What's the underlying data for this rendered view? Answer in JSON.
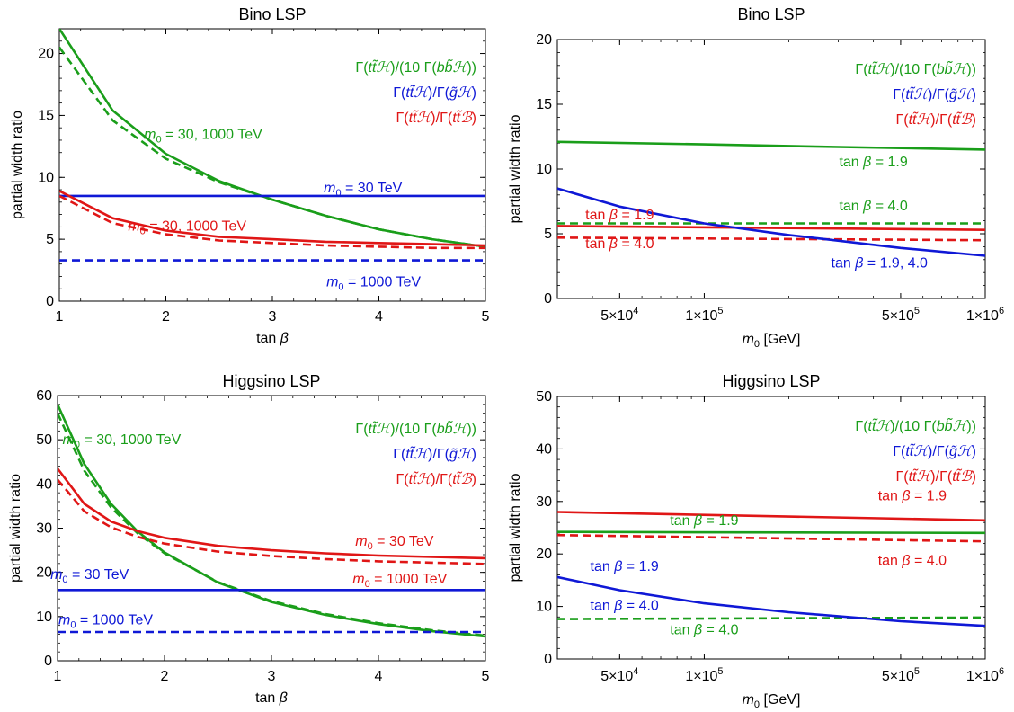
{
  "figure": {
    "colors": {
      "green": "#1a9e1a",
      "blue": "#0f18d6",
      "red": "#e01616",
      "axis": "#000000"
    }
  },
  "chart_data": [
    {
      "id": "bino_tanb",
      "type": "line",
      "title": "Bino LSP",
      "xlabel": "tan β",
      "ylabel": "partial width ratio",
      "xscale": "linear",
      "xlim": [
        1,
        5
      ],
      "ylim": [
        0,
        22
      ],
      "xticks": [
        1,
        2,
        3,
        4,
        5
      ],
      "yticks": [
        0,
        5,
        10,
        15,
        20
      ],
      "legend": {
        "placement": "top-right",
        "entries": [
          {
            "label": "Γ(tt̃ℋ)/(10 Γ(bb̃ℋ))",
            "color": "green"
          },
          {
            "label": "Γ(tt̃ℋ)/Γ(g̃ℋ)",
            "color": "blue"
          },
          {
            "label": "Γ(tt̃ℋ)/Γ(tt̃ℬ)",
            "color": "red"
          }
        ]
      },
      "series": [
        {
          "color": "green",
          "style": "solid",
          "x": [
            1,
            1.5,
            2,
            2.5,
            3,
            3.5,
            4,
            4.5,
            5
          ],
          "y": [
            22.0,
            15.4,
            11.9,
            9.7,
            8.2,
            6.9,
            5.8,
            5.0,
            4.4
          ]
        },
        {
          "color": "green",
          "style": "dashed",
          "x": [
            1,
            1.5,
            2,
            2.5,
            3,
            3.5,
            4,
            4.5,
            5
          ],
          "y": [
            20.5,
            14.6,
            11.5,
            9.6,
            8.2,
            6.9,
            5.8,
            5.0,
            4.4
          ]
        },
        {
          "color": "blue",
          "style": "solid",
          "x": [
            1,
            5
          ],
          "y": [
            8.5,
            8.5
          ]
        },
        {
          "color": "blue",
          "style": "dashed",
          "x": [
            1,
            5
          ],
          "y": [
            3.3,
            3.3
          ]
        },
        {
          "color": "red",
          "style": "solid",
          "x": [
            1,
            1.5,
            2,
            2.5,
            3,
            3.5,
            4,
            4.5,
            5
          ],
          "y": [
            8.9,
            6.7,
            5.7,
            5.2,
            5.0,
            4.8,
            4.7,
            4.6,
            4.5
          ]
        },
        {
          "color": "red",
          "style": "dashed",
          "x": [
            1,
            1.5,
            2,
            2.5,
            3,
            3.5,
            4,
            4.5,
            5
          ],
          "y": [
            8.5,
            6.3,
            5.4,
            4.9,
            4.7,
            4.5,
            4.4,
            4.3,
            4.3
          ]
        }
      ],
      "annotations": [
        {
          "sub": "m",
          "subscript": "0",
          "rest": " = 30, 1000 TeV",
          "color": "green",
          "at": [
            2.35,
            13.1
          ]
        },
        {
          "sub": "m",
          "subscript": "0",
          "rest": " = 30 TeV",
          "color": "blue",
          "at": [
            3.85,
            8.8
          ]
        },
        {
          "sub": "m",
          "subscript": "0",
          "rest": " = 30, 1000 TeV",
          "color": "red",
          "at": [
            2.2,
            5.7
          ]
        },
        {
          "sub": "m",
          "subscript": "0",
          "rest": " = 1000 TeV",
          "color": "blue",
          "at": [
            3.95,
            1.2
          ]
        }
      ]
    },
    {
      "id": "bino_m0",
      "type": "line",
      "title": "Bino LSP",
      "xlabel": "m0 [GeV]",
      "ylabel": "partial width ratio",
      "xscale": "log",
      "xlim": [
        30000,
        1000000
      ],
      "ylim": [
        0,
        20
      ],
      "xticks": [
        50000,
        100000,
        500000,
        1000000
      ],
      "xticklabels": [
        "5×10^4",
        "1×10^5",
        "5×10^5",
        "1×10^6"
      ],
      "yticks": [
        0,
        5,
        10,
        15,
        20
      ],
      "legend": {
        "placement": "top-right",
        "entries": [
          {
            "label": "Γ(tt̃ℋ)/(10 Γ(bb̃ℋ))",
            "color": "green"
          },
          {
            "label": "Γ(tt̃ℋ)/Γ(g̃ℋ)",
            "color": "blue"
          },
          {
            "label": "Γ(tt̃ℋ)/Γ(tt̃ℬ)",
            "color": "red"
          }
        ]
      },
      "series": [
        {
          "color": "green",
          "style": "solid",
          "x": [
            30000,
            100000,
            300000,
            1000000
          ],
          "y": [
            12.1,
            11.9,
            11.7,
            11.5
          ]
        },
        {
          "color": "green",
          "style": "dashed",
          "x": [
            30000,
            1000000
          ],
          "y": [
            5.8,
            5.8
          ]
        },
        {
          "color": "red",
          "style": "solid",
          "x": [
            30000,
            1000000
          ],
          "y": [
            5.6,
            5.3
          ]
        },
        {
          "color": "red",
          "style": "dashed",
          "x": [
            30000,
            1000000
          ],
          "y": [
            4.7,
            4.5
          ]
        },
        {
          "color": "blue",
          "style": "solid",
          "x": [
            30000,
            50000,
            100000,
            200000,
            500000,
            1000000
          ],
          "y": [
            8.5,
            7.1,
            5.8,
            4.9,
            3.9,
            3.3
          ]
        }
      ],
      "annotations": [
        {
          "text": "tan β = 1.9",
          "color": "green",
          "at": [
            400000,
            10.2
          ]
        },
        {
          "text": "tan β = 4.0",
          "color": "green",
          "at": [
            400000,
            6.8
          ]
        },
        {
          "text": "tan β = 1.9",
          "color": "red",
          "at": [
            50000,
            6.1
          ]
        },
        {
          "text": "tan β = 4.0",
          "color": "red",
          "at": [
            50000,
            3.9
          ]
        },
        {
          "text": "tan β = 1.9, 4.0",
          "color": "blue",
          "at": [
            420000,
            2.4
          ]
        }
      ]
    },
    {
      "id": "higgsino_tanb",
      "type": "line",
      "title": "Higgsino LSP",
      "xlabel": "tan β",
      "ylabel": "partial width ratio",
      "xscale": "linear",
      "xlim": [
        1,
        5
      ],
      "ylim": [
        0,
        60
      ],
      "xticks": [
        1,
        2,
        3,
        4,
        5
      ],
      "yticks": [
        0,
        10,
        20,
        30,
        40,
        50,
        60
      ],
      "legend": {
        "placement": "top-right",
        "entries": [
          {
            "label": "Γ(tt̃ℋ)/(10 Γ(bb̃ℋ))",
            "color": "green"
          },
          {
            "label": "Γ(tt̃ℋ)/Γ(g̃ℋ)",
            "color": "blue"
          },
          {
            "label": "Γ(tt̃ℋ)/Γ(tt̃ℬ)",
            "color": "red"
          }
        ]
      },
      "series": [
        {
          "color": "green",
          "style": "solid",
          "x": [
            1,
            1.25,
            1.5,
            1.75,
            2,
            2.5,
            3,
            3.5,
            4,
            4.5,
            5
          ],
          "y": [
            58,
            44.5,
            35.5,
            29.2,
            24.5,
            17.7,
            13.3,
            10.4,
            8.3,
            6.7,
            5.5
          ]
        },
        {
          "color": "green",
          "style": "dashed",
          "x": [
            1,
            1.25,
            1.5,
            1.75,
            2,
            2.5,
            3,
            3.5,
            4,
            4.5,
            5
          ],
          "y": [
            56,
            43.0,
            34.7,
            28.8,
            24.3,
            17.8,
            13.5,
            10.6,
            8.5,
            6.9,
            5.7
          ]
        },
        {
          "color": "red",
          "style": "solid",
          "x": [
            1,
            1.25,
            1.5,
            1.75,
            2,
            2.5,
            3,
            3.5,
            4,
            4.5,
            5
          ],
          "y": [
            43.5,
            35.5,
            31.5,
            29.3,
            27.8,
            26.0,
            25.0,
            24.3,
            23.8,
            23.5,
            23.2
          ]
        },
        {
          "color": "red",
          "style": "dashed",
          "x": [
            1,
            1.25,
            1.5,
            1.75,
            2,
            2.5,
            3,
            3.5,
            4,
            4.5,
            5
          ],
          "y": [
            41,
            33.8,
            30.2,
            28.0,
            26.5,
            24.7,
            23.7,
            23.0,
            22.5,
            22.2,
            21.9
          ]
        },
        {
          "color": "blue",
          "style": "solid",
          "x": [
            1,
            5
          ],
          "y": [
            16,
            16
          ]
        },
        {
          "color": "blue",
          "style": "dashed",
          "x": [
            1,
            5
          ],
          "y": [
            6.5,
            6.5
          ]
        }
      ],
      "annotations": [
        {
          "sub": "m",
          "subscript": "0",
          "rest": " = 30, 1000 TeV",
          "color": "green",
          "at": [
            1.6,
            49
          ]
        },
        {
          "sub": "m",
          "subscript": "0",
          "rest": " = 30 TeV",
          "color": "red",
          "at": [
            4.15,
            26.0
          ]
        },
        {
          "sub": "m",
          "subscript": "0",
          "rest": " = 1000 TeV",
          "color": "red",
          "at": [
            4.2,
            17.5
          ]
        },
        {
          "sub": "m",
          "subscript": "0",
          "rest": " = 30 TeV",
          "color": "blue",
          "at": [
            1.3,
            18.5
          ]
        },
        {
          "sub": "m",
          "subscript": "0",
          "rest": " = 1000 TeV",
          "color": "blue",
          "at": [
            1.45,
            8.2
          ]
        }
      ]
    },
    {
      "id": "higgsino_m0",
      "type": "line",
      "title": "Higgsino LSP",
      "xlabel": "m0 [GeV]",
      "ylabel": "partial width ratio",
      "xscale": "log",
      "xlim": [
        30000,
        1000000
      ],
      "ylim": [
        0,
        50
      ],
      "xticks": [
        50000,
        100000,
        500000,
        1000000
      ],
      "xticklabels": [
        "5×10^4",
        "1×10^5",
        "5×10^5",
        "1×10^6"
      ],
      "yticks": [
        0,
        10,
        20,
        30,
        40,
        50
      ],
      "legend": {
        "placement": "top-right",
        "entries": [
          {
            "label": "Γ(tt̃ℋ)/(10 Γ(bb̃ℋ))",
            "color": "green"
          },
          {
            "label": "Γ(tt̃ℋ)/Γ(g̃ℋ)",
            "color": "blue"
          },
          {
            "label": "Γ(tt̃ℋ)/Γ(tt̃ℬ)",
            "color": "red"
          }
        ]
      },
      "series": [
        {
          "color": "red",
          "style": "solid",
          "x": [
            30000,
            1000000
          ],
          "y": [
            28.0,
            26.4
          ]
        },
        {
          "color": "red",
          "style": "dashed",
          "x": [
            30000,
            1000000
          ],
          "y": [
            23.6,
            22.4
          ]
        },
        {
          "color": "green",
          "style": "solid",
          "x": [
            30000,
            1000000
          ],
          "y": [
            24.2,
            24.0
          ]
        },
        {
          "color": "green",
          "style": "dashed",
          "x": [
            30000,
            1000000
          ],
          "y": [
            7.6,
            7.9
          ]
        },
        {
          "color": "blue",
          "style": "solid",
          "x": [
            30000,
            50000,
            100000,
            200000,
            500000,
            1000000
          ],
          "y": [
            15.6,
            13.1,
            10.6,
            8.9,
            7.2,
            6.3
          ]
        }
      ],
      "annotations": [
        {
          "text": "tan β = 1.9",
          "color": "red",
          "at": [
            550000,
            30.2
          ]
        },
        {
          "text": "tan β = 1.9",
          "color": "green",
          "at": [
            100000,
            25.5
          ]
        },
        {
          "text": "tan β = 4.0",
          "color": "red",
          "at": [
            550000,
            17.9
          ]
        },
        {
          "text": "tan β = 1.9",
          "color": "blue",
          "at": [
            52000,
            16.8
          ]
        },
        {
          "text": "tan β = 4.0",
          "color": "blue",
          "at": [
            52000,
            9.3
          ]
        },
        {
          "text": "tan β = 4.0",
          "color": "green",
          "at": [
            100000,
            4.7
          ]
        }
      ]
    }
  ]
}
